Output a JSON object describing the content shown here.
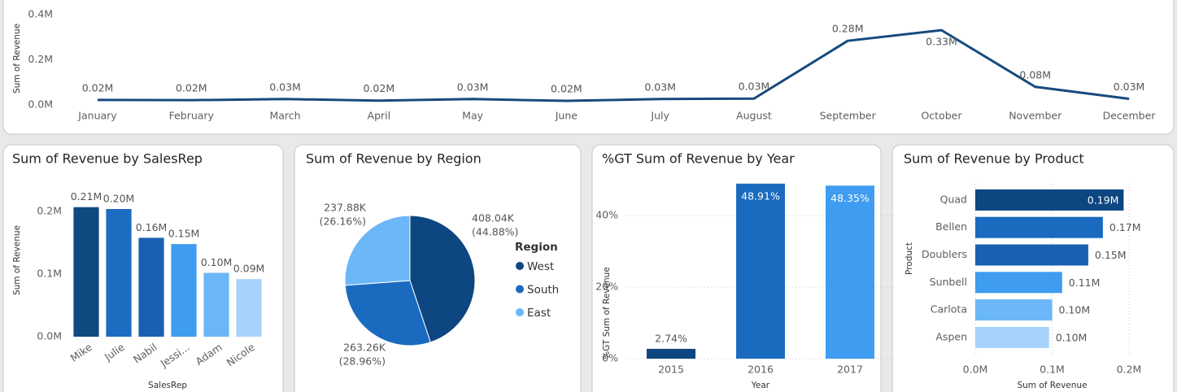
{
  "chart_data": [
    {
      "type": "line",
      "y_label": "Sum of Revenue",
      "color": "#164a7e",
      "categories": [
        "January",
        "February",
        "March",
        "April",
        "May",
        "June",
        "July",
        "August",
        "September",
        "October",
        "November",
        "December"
      ],
      "values": [
        22000,
        21000,
        26000,
        19000,
        26000,
        18000,
        26000,
        28000,
        284000,
        331000,
        80000,
        27000
      ],
      "value_labels": [
        "0.02M",
        "0.02M",
        "0.03M",
        "0.02M",
        "0.03M",
        "0.02M",
        "0.03M",
        "0.03M",
        "0.28M",
        "0.33M",
        "0.08M",
        "0.03M"
      ],
      "ylim": [
        0,
        400000
      ],
      "yticks": [
        {
          "value": 0,
          "label": "0.0M"
        },
        {
          "value": 200000,
          "label": "0.2M"
        },
        {
          "value": 400000,
          "label": "0.4M"
        }
      ]
    },
    {
      "type": "bar",
      "title": "Sum of Revenue by SalesRep",
      "x_label": "SalesRep",
      "y_label": "Sum of Revenue",
      "categories": [
        "Mike",
        "Julie",
        "Nabil",
        "Jessi...",
        "Adam",
        "Nicole"
      ],
      "values": [
        207000,
        204000,
        158000,
        148000,
        102000,
        92000
      ],
      "value_labels": [
        "0.21M",
        "0.20M",
        "0.16M",
        "0.15M",
        "0.10M",
        "0.09M"
      ],
      "colors": [
        "#0f4a80",
        "#1c6cc2",
        "#1960b2",
        "#3e9cf1",
        "#6bb6f7",
        "#a6d2fb"
      ],
      "ylim": [
        0,
        230000
      ],
      "yticks": [
        {
          "value": 0,
          "label": "0.0M"
        },
        {
          "value": 100000,
          "label": "0.1M"
        },
        {
          "value": 200000,
          "label": "0.2M"
        }
      ]
    },
    {
      "type": "pie",
      "title": "Sum of Revenue by Region",
      "legend_title": "Region",
      "categories": [
        "West",
        "South",
        "East"
      ],
      "values": [
        408040,
        263260,
        237880
      ],
      "value_labels": [
        "408.04K",
        "263.26K",
        "237.88K"
      ],
      "percent_labels": [
        "(44.88%)",
        "(28.96%)",
        "(26.16%)"
      ],
      "colors": [
        "#0d4680",
        "#1a6bbf",
        "#6bb7f8"
      ]
    },
    {
      "type": "bar",
      "title": "%GT Sum of Revenue by Year",
      "x_label": "Year",
      "y_label": "%GT Sum of Revenue",
      "categories": [
        "2015",
        "2016",
        "2017"
      ],
      "values": [
        2.74,
        48.91,
        48.35
      ],
      "value_labels": [
        "2.74%",
        "48.91%",
        "48.35%"
      ],
      "colors": [
        "#0d4680",
        "#1a6bbf",
        "#3e9cf1"
      ],
      "ylim": [
        0,
        50
      ],
      "yticks": [
        {
          "value": 0,
          "label": "0%"
        },
        {
          "value": 20,
          "label": "20%"
        },
        {
          "value": 40,
          "label": "40%"
        }
      ],
      "grid": true
    },
    {
      "type": "bar",
      "orientation": "horizontal",
      "title": "Sum of Revenue by Product",
      "x_label": "Sum of Revenue",
      "y_label": "Product",
      "categories": [
        "Quad",
        "Bellen",
        "Doublers",
        "Sunbell",
        "Carlota",
        "Aspen"
      ],
      "values": [
        193000,
        166000,
        147000,
        113000,
        100000,
        96000
      ],
      "value_labels": [
        "0.19M",
        "0.17M",
        "0.15M",
        "0.11M",
        "0.10M",
        "0.10M"
      ],
      "colors": [
        "#0d4680",
        "#1a6bbf",
        "#1960b2",
        "#3e9cf1",
        "#6bb7f8",
        "#a6d2fb"
      ],
      "xlim": [
        0,
        200000
      ],
      "xticks": [
        {
          "value": 0,
          "label": "0.0M"
        },
        {
          "value": 100000,
          "label": "0.1M"
        },
        {
          "value": 200000,
          "label": "0.2M"
        }
      ],
      "grid": true
    }
  ]
}
